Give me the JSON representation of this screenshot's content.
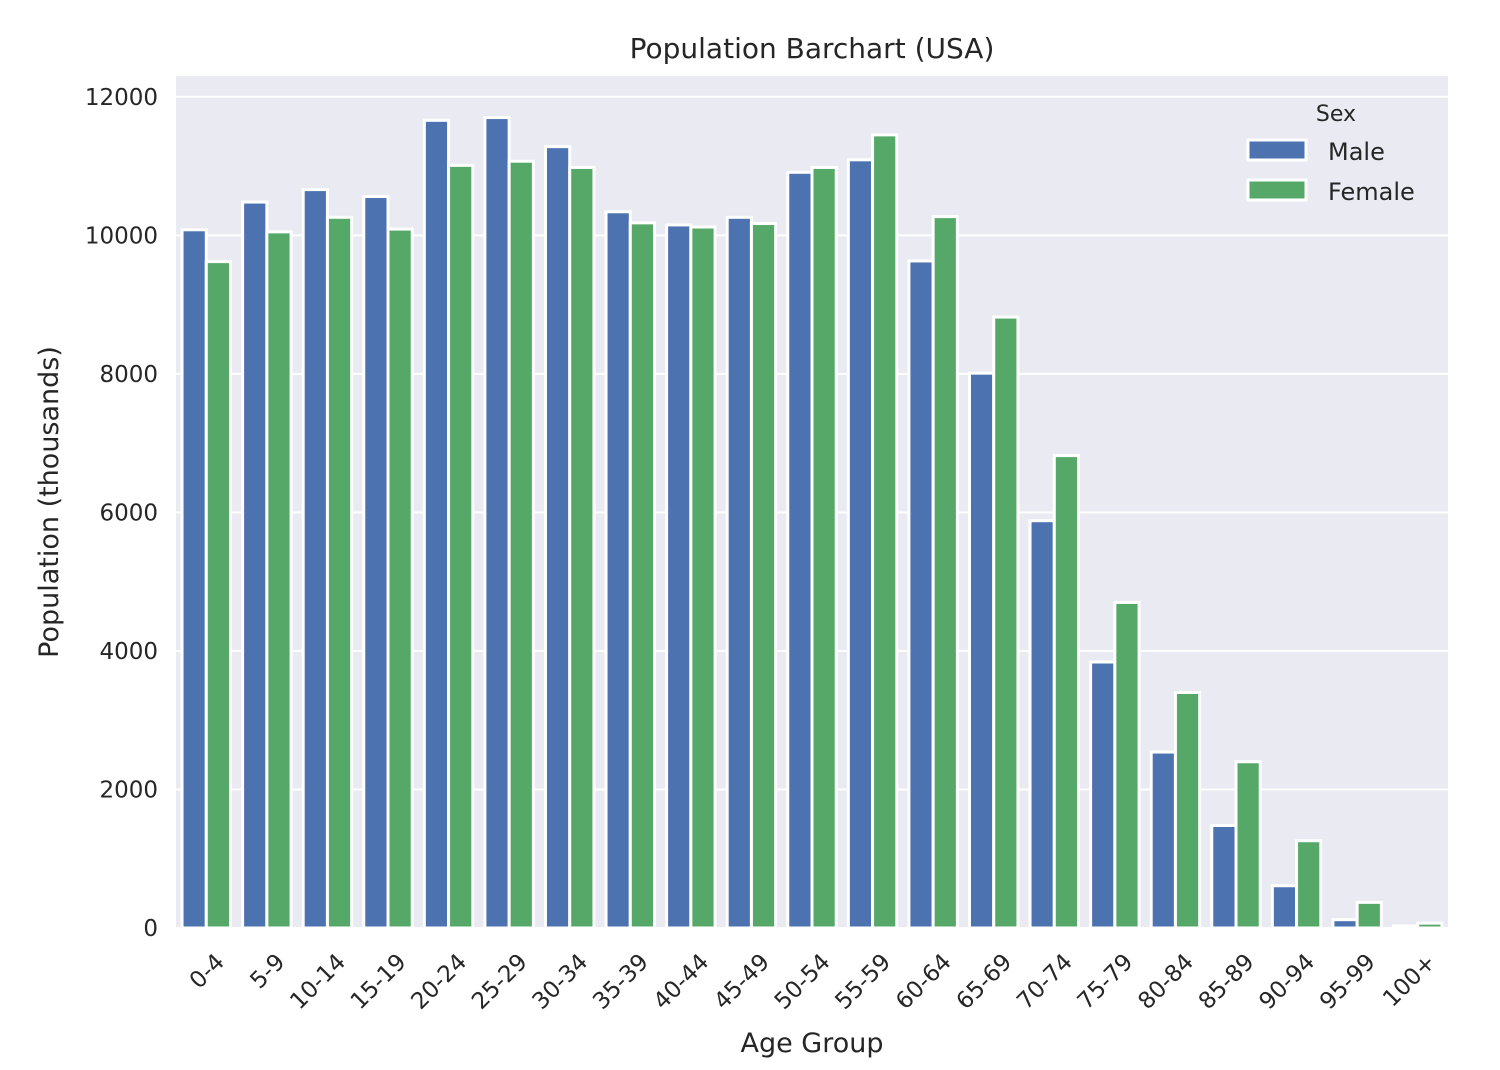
{
  "chart_data": {
    "type": "bar",
    "title": "Population Barchart (USA)",
    "xlabel": "Age Group",
    "ylabel": "Population (thousands)",
    "ylim": [
      0,
      12300
    ],
    "yticks": [
      0,
      2000,
      4000,
      6000,
      8000,
      10000,
      12000
    ],
    "grid": true,
    "legend_title": "Sex",
    "legend_position": "top-right",
    "categories": [
      "0-4",
      "5-9",
      "10-14",
      "15-19",
      "20-24",
      "25-29",
      "30-34",
      "35-39",
      "40-44",
      "45-49",
      "50-54",
      "55-59",
      "60-64",
      "65-69",
      "70-74",
      "75-79",
      "80-84",
      "85-89",
      "90-94",
      "95-99",
      "100+"
    ],
    "series": [
      {
        "name": "Male",
        "color": "#4c72b0",
        "values": [
          10080,
          10480,
          10660,
          10560,
          11660,
          11700,
          11280,
          10340,
          10150,
          10260,
          10910,
          11090,
          9630,
          8010,
          5880,
          3840,
          2540,
          1480,
          610,
          120,
          30
        ]
      },
      {
        "name": "Female",
        "color": "#55a868",
        "values": [
          9620,
          10050,
          10260,
          10090,
          11010,
          11070,
          10980,
          10180,
          10120,
          10170,
          10980,
          11450,
          10270,
          8820,
          6820,
          4700,
          3400,
          2400,
          1260,
          370,
          70
        ]
      }
    ],
    "colors": {
      "plot_bg": "#eaeaf2",
      "grid": "#ffffff",
      "text": "#262626"
    }
  }
}
